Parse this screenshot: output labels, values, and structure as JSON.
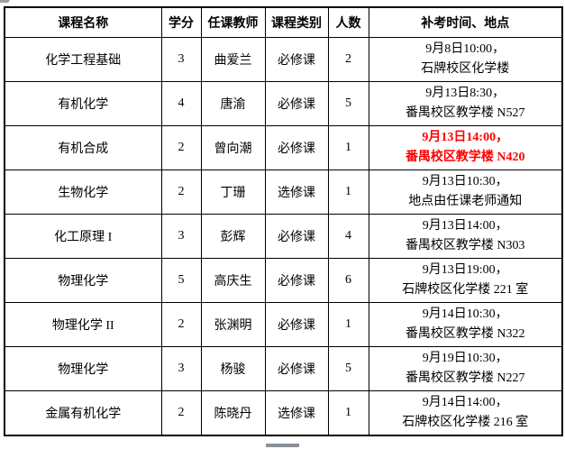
{
  "table": {
    "headers": [
      "课程名称",
      "学分",
      "任课教师",
      "课程类别",
      "人数",
      "补考时间、地点"
    ],
    "rows": [
      {
        "course": "化学工程基础",
        "credits": "3",
        "teacher": "曲爱兰",
        "type": "必修课",
        "count": "2",
        "time_line1": "9月8日10:00，",
        "time_line2": "石牌校区化学楼",
        "highlight": false
      },
      {
        "course": "有机化学",
        "credits": "4",
        "teacher": "唐渝",
        "type": "必修课",
        "count": "5",
        "time_line1": "9月13日8:30，",
        "time_line2": "番禺校区教学楼 N527",
        "highlight": false
      },
      {
        "course": "有机合成",
        "credits": "2",
        "teacher": "曾向潮",
        "type": "必修课",
        "count": "1",
        "time_line1": "9月13日14:00，",
        "time_line2": "番禺校区教学楼 N420",
        "highlight": true
      },
      {
        "course": "生物化学",
        "credits": "2",
        "teacher": "丁珊",
        "type": "选修课",
        "count": "1",
        "time_line1": "9月13日10:30，",
        "time_line2": "地点由任课老师通知",
        "highlight": false
      },
      {
        "course": "化工原理 I",
        "credits": "3",
        "teacher": "彭辉",
        "type": "必修课",
        "count": "4",
        "time_line1": "9月13日14:00，",
        "time_line2": "番禺校区教学楼 N303",
        "highlight": false
      },
      {
        "course": "物理化学",
        "credits": "5",
        "teacher": "高庆生",
        "type": "必修课",
        "count": "6",
        "time_line1": "9月13日19:00，",
        "time_line2": "石牌校区化学楼 221 室",
        "highlight": false
      },
      {
        "course": "物理化学 II",
        "credits": "2",
        "teacher": "张渊明",
        "type": "必修课",
        "count": "1",
        "time_line1": "9月14日10:30，",
        "time_line2": "番禺校区教学楼 N322",
        "highlight": false
      },
      {
        "course": "物理化学",
        "credits": "3",
        "teacher": "杨骏",
        "type": "必修课",
        "count": "5",
        "time_line1": "9月19日10:30，",
        "time_line2": "番禺校区教学楼 N227",
        "highlight": false
      },
      {
        "course": "金属有机化学",
        "credits": "2",
        "teacher": "陈晓丹",
        "type": "选修课",
        "count": "1",
        "time_line1": "9月14日14:00，",
        "time_line2": "石牌校区化学楼 216 室",
        "highlight": false
      }
    ]
  },
  "colors": {
    "border": "#000000",
    "text": "#000000",
    "highlight_text": "#ff0000",
    "scrollbar": "#8a9097",
    "background": "#ffffff"
  }
}
